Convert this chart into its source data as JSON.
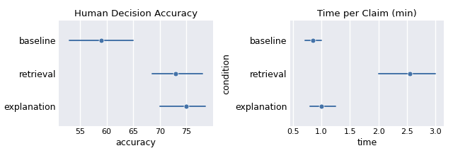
{
  "left_title": "Human Decision Accuracy",
  "right_title": "Time per Claim (min)",
  "conditions": [
    "baseline",
    "retrieval",
    "explanation"
  ],
  "left_xlabel": "accuracy",
  "right_xlabel": "time",
  "ylabel": "condition",
  "left_data": {
    "centers": [
      59.0,
      73.0,
      75.0
    ],
    "ci_low": [
      53.0,
      68.5,
      70.0
    ],
    "ci_high": [
      65.0,
      78.0,
      78.5
    ]
  },
  "right_data": {
    "centers": [
      0.85,
      2.55,
      1.0
    ],
    "ci_low": [
      0.72,
      2.0,
      0.8
    ],
    "ci_high": [
      1.0,
      3.0,
      1.25
    ]
  },
  "left_xlim": [
    51,
    80
  ],
  "right_xlim": [
    0.45,
    3.15
  ],
  "left_xticks": [
    55,
    60,
    65,
    70,
    75
  ],
  "right_xticks": [
    0.5,
    1.0,
    1.5,
    2.0,
    2.5,
    3.0
  ],
  "dot_color": "#4472a8",
  "line_color": "#4472a8",
  "bg_color": "#e8eaf0",
  "grid_color": "#ffffff",
  "dot_size": 5,
  "line_width": 1.4,
  "title_fontsize": 9.5,
  "label_fontsize": 9,
  "tick_fontsize": 8,
  "ylabel_fontsize": 9,
  "fig_bg": "#ffffff"
}
